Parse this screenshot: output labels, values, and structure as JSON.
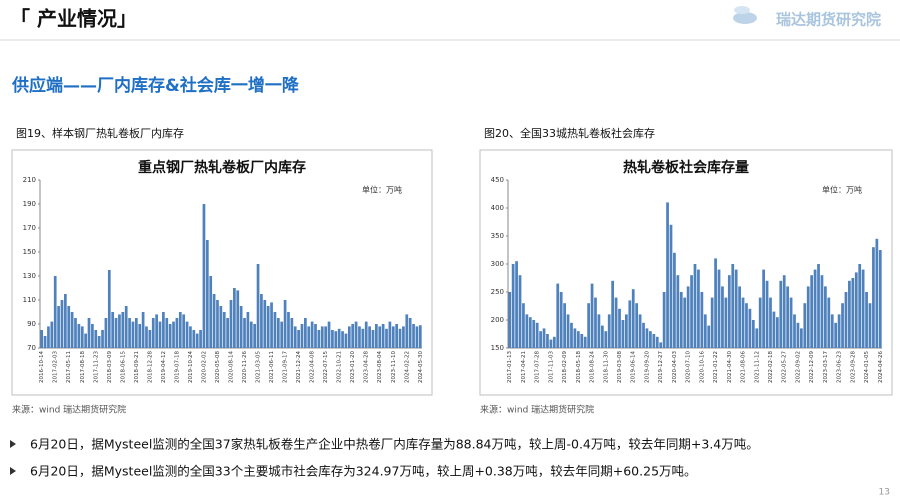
{
  "header": {
    "section": "「 产业情况」",
    "logo": "瑞达期货研究院"
  },
  "subtitle": "供应端——厂内库存&社会库一增一降",
  "chart_data": [
    {
      "type": "bar",
      "caption": "图19、样本钢厂热轧卷板厂内库存",
      "title": "重点钢厂热轧卷板厂内库存",
      "unit": "单位：万吨",
      "source": "来源：wind 瑞达期货研究院",
      "color": "#4f81bd",
      "ylim": [
        70,
        210
      ],
      "yticks": [
        70,
        90,
        110,
        130,
        150,
        170,
        190,
        210
      ],
      "categories": [
        "2016-10-14",
        null,
        null,
        null,
        "2017-02-03",
        null,
        null,
        null,
        "2017-05-11",
        null,
        null,
        null,
        "2017-08-18",
        null,
        null,
        null,
        "2017-11-23",
        null,
        null,
        null,
        "2018-03-09",
        null,
        null,
        null,
        "2018-06-15",
        null,
        null,
        null,
        "2018-09-21",
        null,
        null,
        null,
        "2018-12-28",
        null,
        null,
        null,
        "2019-04-12",
        null,
        null,
        null,
        "2019-07-18",
        null,
        null,
        null,
        "2019-10-24",
        null,
        null,
        null,
        "2020-02-02",
        null,
        null,
        null,
        "2020-05-08",
        null,
        null,
        null,
        "2020-08-14",
        null,
        null,
        null,
        "2020-11-26",
        null,
        null,
        null,
        "2021-03-05",
        null,
        null,
        null,
        "2021-06-11",
        null,
        null,
        null,
        "2021-09-17",
        null,
        null,
        null,
        "2021-12-24",
        null,
        null,
        null,
        "2022-04-08",
        null,
        null,
        null,
        "2022-07-15",
        null,
        null,
        null,
        "2022-10-21",
        null,
        null,
        null,
        "2023-01-20",
        null,
        null,
        null,
        "2023-04-28",
        null,
        null,
        null,
        "2023-08-04",
        null,
        null,
        null,
        "2023-11-10",
        null,
        null,
        null,
        "2024-02-22",
        null,
        null,
        null,
        "2024-05-30"
      ],
      "values": [
        85,
        80,
        88,
        92,
        130,
        105,
        110,
        115,
        105,
        100,
        95,
        90,
        88,
        82,
        95,
        90,
        85,
        80,
        85,
        95,
        135,
        100,
        95,
        98,
        100,
        105,
        95,
        92,
        95,
        90,
        100,
        88,
        85,
        95,
        98,
        92,
        100,
        95,
        90,
        92,
        95,
        100,
        98,
        92,
        88,
        85,
        82,
        85,
        190,
        160,
        130,
        115,
        110,
        105,
        100,
        95,
        110,
        120,
        118,
        105,
        95,
        100,
        92,
        90,
        140,
        115,
        110,
        105,
        108,
        100,
        95,
        92,
        110,
        100,
        95,
        88,
        85,
        90,
        95,
        88,
        92,
        90,
        85,
        88,
        88,
        92,
        85,
        84,
        86,
        84,
        82,
        88,
        90,
        92,
        88,
        86,
        92,
        88,
        85,
        90,
        88,
        90,
        86,
        92,
        88,
        90,
        86,
        88,
        98,
        95,
        90,
        88,
        89
      ]
    },
    {
      "type": "bar",
      "caption": "图20、全国33城热轧卷板社会库存",
      "title": "热轧卷板社会库存量",
      "unit": "单位：万吨",
      "source": "来源：wind 瑞达期货研究院",
      "color": "#4f81bd",
      "ylim": [
        150,
        450
      ],
      "yticks": [
        150,
        200,
        250,
        300,
        350,
        400,
        450
      ],
      "categories": [
        "2017-01-13",
        null,
        null,
        null,
        "2017-04-21",
        null,
        null,
        null,
        "2017-07-28",
        null,
        null,
        null,
        "2017-11-03",
        null,
        null,
        null,
        "2018-02-09",
        null,
        null,
        null,
        "2018-05-18",
        null,
        null,
        null,
        "2018-08-24",
        null,
        null,
        null,
        "2018-11-30",
        null,
        null,
        null,
        "2019-03-08",
        null,
        null,
        null,
        "2019-06-14",
        null,
        null,
        null,
        "2019-09-20",
        null,
        null,
        null,
        "2019-12-27",
        null,
        null,
        null,
        "2020-04-03",
        null,
        null,
        null,
        "2020-07-10",
        null,
        null,
        null,
        "2020-10-16",
        null,
        null,
        null,
        "2021-01-22",
        null,
        null,
        null,
        "2021-04-30",
        null,
        null,
        null,
        "2021-08-06",
        null,
        null,
        null,
        "2021-11-12",
        null,
        null,
        null,
        "2022-02-18",
        null,
        null,
        null,
        "2022-05-27",
        null,
        null,
        null,
        "2022-09-02",
        null,
        null,
        null,
        "2022-12-09",
        null,
        null,
        null,
        "2023-03-17",
        null,
        null,
        null,
        "2023-06-23",
        null,
        null,
        null,
        "2023-09-28",
        null,
        null,
        null,
        "2024-01-05",
        null,
        null,
        null,
        "2024-04-26"
      ],
      "values": [
        250,
        300,
        305,
        280,
        230,
        210,
        205,
        200,
        195,
        180,
        185,
        175,
        165,
        170,
        265,
        250,
        230,
        210,
        195,
        185,
        180,
        175,
        170,
        230,
        265,
        240,
        210,
        190,
        180,
        210,
        270,
        240,
        220,
        200,
        210,
        235,
        255,
        230,
        210,
        195,
        185,
        180,
        175,
        170,
        160,
        250,
        410,
        370,
        320,
        280,
        250,
        240,
        260,
        280,
        300,
        290,
        250,
        210,
        190,
        240,
        310,
        290,
        260,
        240,
        280,
        300,
        290,
        260,
        240,
        230,
        220,
        200,
        185,
        240,
        290,
        270,
        240,
        215,
        205,
        270,
        280,
        260,
        240,
        210,
        195,
        185,
        230,
        260,
        280,
        290,
        300,
        280,
        260,
        240,
        210,
        195,
        210,
        230,
        250,
        270,
        275,
        285,
        300,
        290,
        250,
        230,
        330,
        345,
        325
      ]
    }
  ],
  "bullets": [
    "6月20日，据Mysteel监测的全国37家热轧板卷生产企业中热卷厂内库存量为88.84万吨，较上周-0.4万吨，较去年同期+3.4万吨。",
    "6月20日，据Mysteel监测的全国33个主要城市社会库存为324.97万吨，较上周+0.38万吨，较去年同期+60.25万吨。"
  ],
  "page_number": "13"
}
